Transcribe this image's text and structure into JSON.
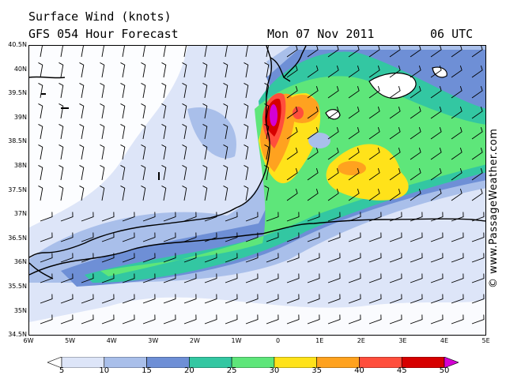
{
  "header": {
    "title": "Surface Wind (knots)",
    "forecast": "GFS 054 Hour Forecast",
    "date": "Mon 07 Nov 2011",
    "time": "06 UTC"
  },
  "lat_labels": [
    "40.5N",
    "40N",
    "39.5N",
    "39N",
    "38.5N",
    "38N",
    "37.5N",
    "37N",
    "36.5N",
    "36N",
    "35.5N",
    "35N",
    "34.5N"
  ],
  "lon_labels": [
    "6W",
    "5W",
    "4W",
    "3W",
    "2W",
    "1W",
    "0",
    "1E",
    "2E",
    "3E",
    "4E",
    "5E"
  ],
  "watermark": "© www.PassageWeather.com",
  "legend": {
    "labels": [
      "5",
      "10",
      "15",
      "20",
      "25",
      "30",
      "35",
      "40",
      "45",
      "50"
    ],
    "colors": [
      "#ffffff",
      "#dde5f8",
      "#a9bfea",
      "#6e8fd6",
      "#33c7a2",
      "#5ee67a",
      "#ffe21a",
      "#ffa21f",
      "#ff4e3c",
      "#d60000",
      "#d400d4"
    ]
  }
}
